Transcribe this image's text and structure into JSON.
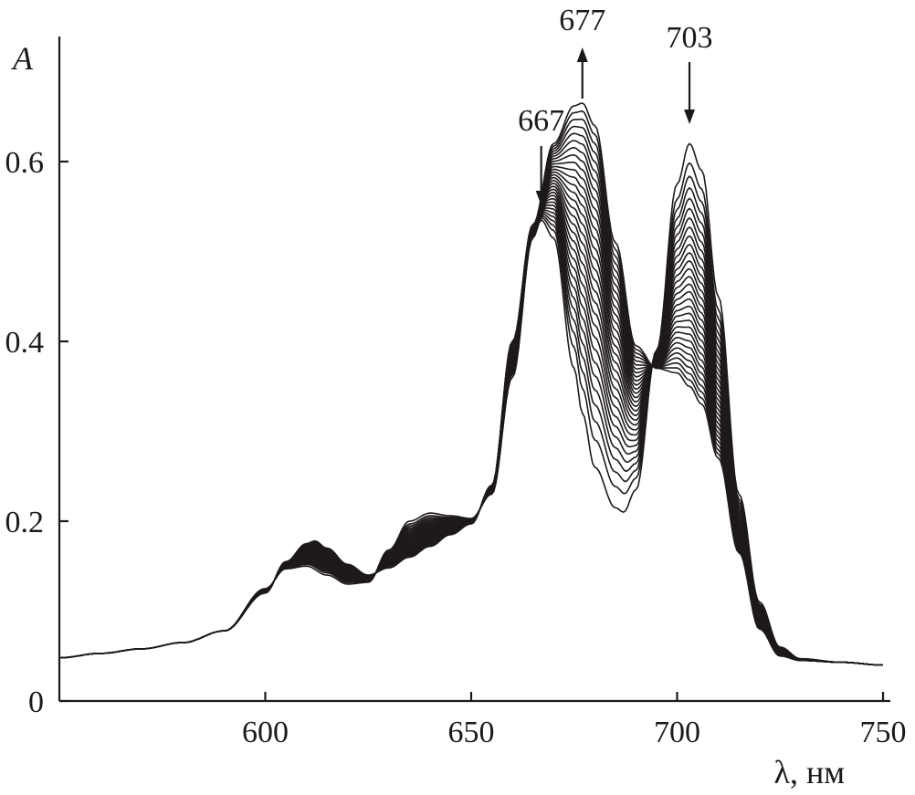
{
  "chart_data": {
    "type": "line",
    "title": "",
    "xlabel": "λ, нм",
    "ylabel": "A",
    "xlim": [
      550,
      755
    ],
    "ylim": [
      0,
      0.745
    ],
    "xticks": [
      {
        "value": 600,
        "label": "600"
      },
      {
        "value": 650,
        "label": "650"
      },
      {
        "value": 700,
        "label": "700"
      },
      {
        "value": 750,
        "label": "750"
      }
    ],
    "yticks": [
      {
        "value": 0,
        "label": "0"
      },
      {
        "value": 0.2,
        "label": "0.2"
      },
      {
        "value": 0.4,
        "label": "0.4"
      },
      {
        "value": 0.6,
        "label": "0.6"
      }
    ],
    "grid": false,
    "legend": "none",
    "line_color": "#1f1a1a",
    "series_count": 30,
    "series_first": {
      "x": [
        550,
        560,
        570,
        580,
        590,
        600,
        605,
        610,
        615,
        620,
        625,
        630,
        635,
        640,
        645,
        650,
        655,
        660,
        665,
        667,
        670,
        675,
        677,
        680,
        685,
        687,
        690,
        695,
        700,
        703,
        706,
        710,
        715,
        720,
        725,
        730,
        740,
        750
      ],
      "y": [
        0.048,
        0.053,
        0.058,
        0.065,
        0.078,
        0.125,
        0.147,
        0.15,
        0.14,
        0.13,
        0.132,
        0.168,
        0.2,
        0.209,
        0.206,
        0.203,
        0.23,
        0.36,
        0.515,
        0.535,
        0.515,
        0.37,
        0.32,
        0.26,
        0.215,
        0.21,
        0.235,
        0.39,
        0.575,
        0.62,
        0.59,
        0.45,
        0.23,
        0.11,
        0.06,
        0.047,
        0.043,
        0.04
      ]
    },
    "series_last": {
      "x": [
        550,
        560,
        570,
        580,
        590,
        600,
        605,
        610,
        612,
        615,
        620,
        625,
        630,
        635,
        640,
        645,
        650,
        655,
        660,
        665,
        670,
        675,
        677,
        680,
        685,
        690,
        695,
        700,
        703,
        706,
        710,
        715,
        720,
        725,
        730,
        740,
        750
      ],
      "y": [
        0.048,
        0.053,
        0.058,
        0.065,
        0.078,
        0.12,
        0.155,
        0.175,
        0.178,
        0.17,
        0.152,
        0.14,
        0.148,
        0.16,
        0.172,
        0.185,
        0.197,
        0.24,
        0.4,
        0.53,
        0.62,
        0.662,
        0.665,
        0.64,
        0.51,
        0.395,
        0.37,
        0.365,
        0.35,
        0.33,
        0.27,
        0.165,
        0.08,
        0.05,
        0.045,
        0.043,
        0.04
      ]
    },
    "annotations": [
      {
        "label": "667",
        "x": 667,
        "direction": "down"
      },
      {
        "label": "677",
        "x": 677,
        "direction": "up"
      },
      {
        "label": "703",
        "x": 703,
        "direction": "down"
      }
    ]
  }
}
